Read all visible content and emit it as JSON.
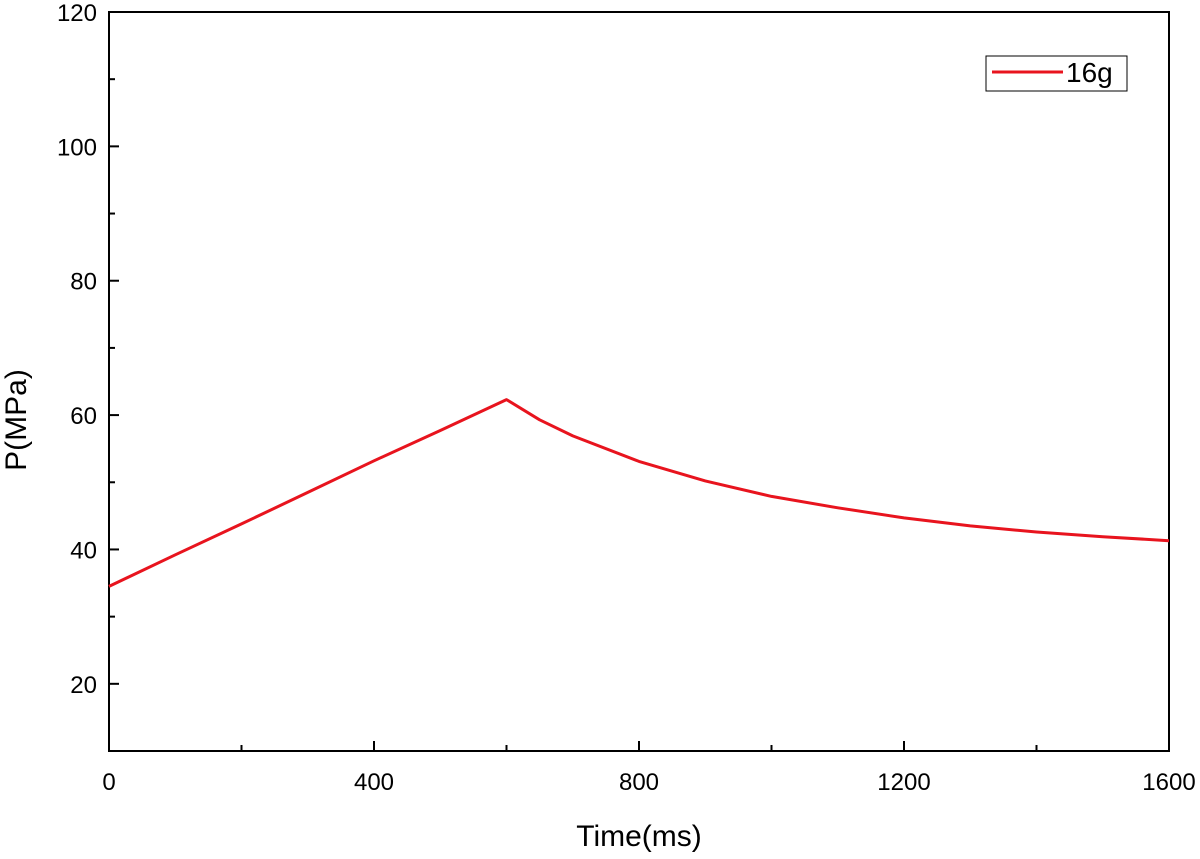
{
  "chart_data": {
    "type": "line",
    "title": "",
    "xlabel": "Time(ms)",
    "ylabel": "P(MPa)",
    "xlim": [
      0,
      1600
    ],
    "ylim": [
      10,
      120
    ],
    "xticks": [
      0,
      400,
      800,
      1200,
      1600
    ],
    "xticks_minor": [
      200,
      600,
      1000,
      1400
    ],
    "yticks": [
      20,
      40,
      60,
      80,
      100,
      120
    ],
    "yticks_minor": [
      30,
      50,
      70,
      90,
      110
    ],
    "grid": false,
    "legend_position": "top-right",
    "colors": {
      "series": "#e8141e",
      "axis": "#000000"
    },
    "series": [
      {
        "name": "16g",
        "x": [
          0,
          100,
          200,
          300,
          400,
          500,
          600,
          650,
          700,
          800,
          900,
          1000,
          1100,
          1200,
          1300,
          1400,
          1500,
          1600
        ],
        "y": [
          34.5,
          39.2,
          43.8,
          48.5,
          53.2,
          57.7,
          62.3,
          59.3,
          56.9,
          53.1,
          50.2,
          47.9,
          46.2,
          44.7,
          43.5,
          42.6,
          41.9,
          41.3
        ]
      }
    ]
  }
}
